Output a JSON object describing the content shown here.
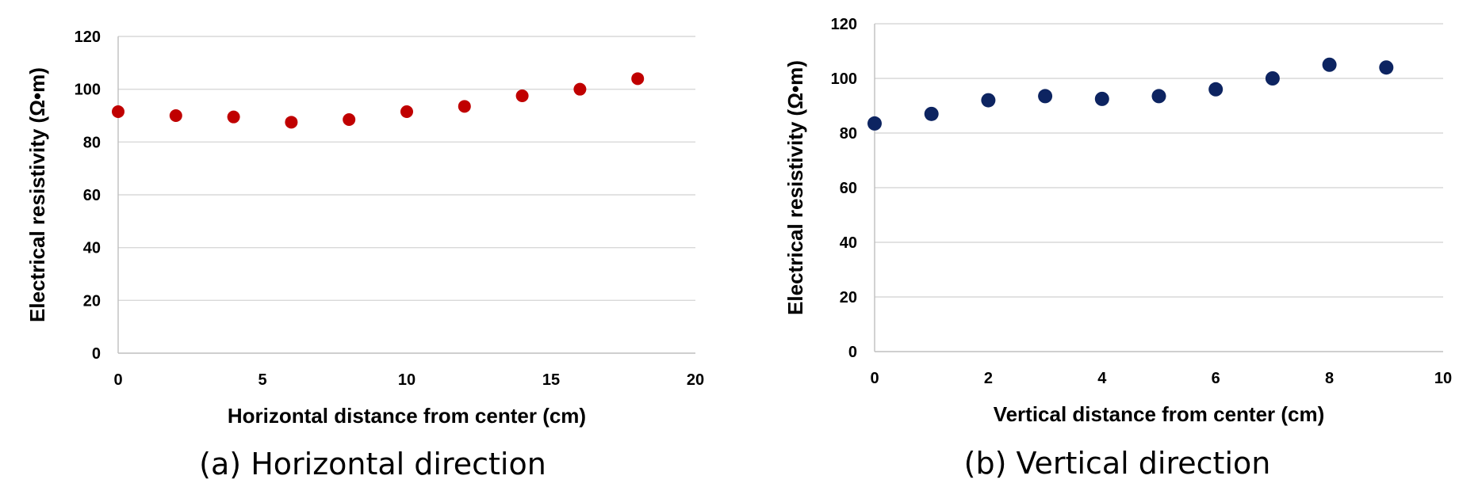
{
  "chart_data": [
    {
      "type": "scatter",
      "caption": "(a) Horizontal direction",
      "xlabel": "Horizontal distance from center (cm)",
      "ylabel": "Electrical resistivity (Ω•m)",
      "xlim": [
        0,
        20
      ],
      "ylim": [
        0,
        120
      ],
      "xticks": [
        0,
        5,
        10,
        15,
        20
      ],
      "yticks": [
        0,
        20,
        40,
        60,
        80,
        100,
        120
      ],
      "grid": true,
      "series": [
        {
          "color": "#c00000",
          "x": [
            0,
            2,
            4,
            6,
            8,
            10,
            12,
            14,
            16,
            18
          ],
          "y": [
            91.5,
            90,
            89.5,
            87.5,
            88.5,
            91.5,
            93.5,
            97.5,
            100,
            104
          ]
        }
      ]
    },
    {
      "type": "scatter",
      "caption": "(b) Vertical direction",
      "xlabel": "Vertical distance from center (cm)",
      "ylabel": "Electrical resistivity (Ω•m)",
      "xlim": [
        0,
        10
      ],
      "ylim": [
        0,
        120
      ],
      "xticks": [
        0,
        2,
        4,
        6,
        8,
        10
      ],
      "yticks": [
        0,
        20,
        40,
        60,
        80,
        100,
        120
      ],
      "grid": true,
      "series": [
        {
          "color": "#0d2461",
          "x": [
            0,
            1,
            2,
            3,
            4,
            5,
            6,
            7,
            8,
            9
          ],
          "y": [
            83.5,
            87,
            92,
            93.5,
            92.5,
            93.5,
            96,
            100,
            105,
            104
          ]
        }
      ]
    }
  ]
}
